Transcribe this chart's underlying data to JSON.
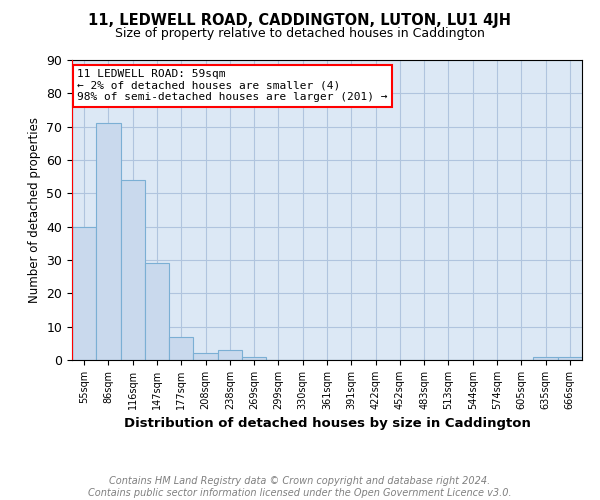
{
  "title": "11, LEDWELL ROAD, CADDINGTON, LUTON, LU1 4JH",
  "subtitle": "Size of property relative to detached houses in Caddington",
  "xlabel": "Distribution of detached houses by size in Caddington",
  "ylabel": "Number of detached properties",
  "footer_line1": "Contains HM Land Registry data © Crown copyright and database right 2024.",
  "footer_line2": "Contains public sector information licensed under the Open Government Licence v3.0.",
  "categories": [
    "55sqm",
    "86sqm",
    "116sqm",
    "147sqm",
    "177sqm",
    "208sqm",
    "238sqm",
    "269sqm",
    "299sqm",
    "330sqm",
    "361sqm",
    "391sqm",
    "422sqm",
    "452sqm",
    "483sqm",
    "513sqm",
    "544sqm",
    "574sqm",
    "605sqm",
    "635sqm",
    "666sqm"
  ],
  "values": [
    40,
    71,
    54,
    29,
    7,
    2,
    3,
    1,
    0,
    0,
    0,
    0,
    0,
    0,
    0,
    0,
    0,
    0,
    0,
    1,
    1
  ],
  "bar_color": "#c9d9ed",
  "bar_edge_color": "#7bafd4",
  "grid_color": "#b0c4de",
  "annotation_line1": "11 LEDWELL ROAD: 59sqm",
  "annotation_line2": "← 2% of detached houses are smaller (4)",
  "annotation_line3": "98% of semi-detached houses are larger (201) →",
  "annotation_box_color": "white",
  "annotation_box_edge_color": "red",
  "property_line_color": "red",
  "ylim": [
    0,
    90
  ],
  "yticks": [
    0,
    10,
    20,
    30,
    40,
    50,
    60,
    70,
    80,
    90
  ],
  "background_color": "#dce8f5"
}
